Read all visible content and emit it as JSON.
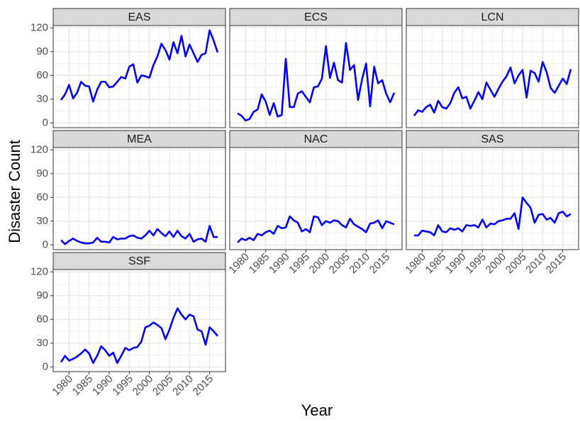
{
  "chart_data": {
    "type": "line",
    "x_label": "Year",
    "y_label": "Disaster Count",
    "x": [
      1978,
      1979,
      1980,
      1981,
      1982,
      1983,
      1984,
      1985,
      1986,
      1987,
      1988,
      1989,
      1990,
      1991,
      1992,
      1993,
      1994,
      1995,
      1996,
      1997,
      1998,
      1999,
      2000,
      2001,
      2002,
      2003,
      2004,
      2005,
      2006,
      2007,
      2008,
      2009,
      2010,
      2011,
      2012,
      2013,
      2014,
      2015,
      2016,
      2017
    ],
    "xlim": [
      1976.05,
      2018.95
    ],
    "xticks": [
      1980,
      1985,
      1990,
      1995,
      2000,
      2005,
      2010,
      2015
    ],
    "ylim": [
      -6,
      123
    ],
    "yticks": [
      0,
      30,
      60,
      90,
      120
    ],
    "grid": true,
    "series": [
      {
        "name": "EAS",
        "color": "#0000ff",
        "values": [
          29,
          36,
          48,
          31,
          38,
          52,
          47,
          46,
          27,
          42,
          52,
          52,
          45,
          46,
          52,
          58,
          56,
          71,
          74,
          51,
          60,
          59,
          57,
          73,
          84,
          100,
          92,
          80,
          102,
          88,
          110,
          84,
          99,
          88,
          77,
          86,
          88,
          117,
          104,
          89
        ]
      },
      {
        "name": "ECS",
        "color": "#0000ff",
        "values": [
          12,
          9,
          3,
          5,
          14,
          17,
          36,
          27,
          10,
          25,
          8,
          10,
          81,
          20,
          20,
          37,
          40,
          33,
          26,
          45,
          46,
          56,
          97,
          57,
          76,
          54,
          51,
          101,
          67,
          73,
          29,
          55,
          75,
          21,
          71,
          50,
          54,
          37,
          26,
          38
        ]
      },
      {
        "name": "LCN",
        "color": "#0000ff",
        "values": [
          9,
          16,
          14,
          20,
          23,
          13,
          28,
          20,
          18,
          25,
          38,
          45,
          31,
          33,
          18,
          28,
          39,
          30,
          51,
          42,
          33,
          43,
          52,
          59,
          70,
          50,
          60,
          67,
          32,
          66,
          63,
          52,
          77,
          64,
          44,
          38,
          47,
          56,
          49,
          68
        ]
      },
      {
        "name": "MEA",
        "color": "#0000ff",
        "values": [
          6,
          1,
          5,
          8,
          5,
          3,
          2,
          2,
          3,
          9,
          4,
          4,
          3,
          10,
          7,
          8,
          8,
          11,
          12,
          9,
          8,
          12,
          18,
          12,
          20,
          15,
          11,
          17,
          10,
          18,
          11,
          8,
          14,
          4,
          7,
          8,
          4,
          24,
          10,
          10
        ]
      },
      {
        "name": "NAC",
        "color": "#0000ff",
        "values": [
          3,
          8,
          6,
          9,
          6,
          14,
          12,
          16,
          18,
          14,
          24,
          21,
          22,
          36,
          31,
          28,
          17,
          20,
          16,
          36,
          35,
          25,
          30,
          28,
          31,
          30,
          25,
          22,
          33,
          26,
          23,
          20,
          16,
          27,
          28,
          31,
          21,
          30,
          28,
          26
        ]
      },
      {
        "name": "SAS",
        "color": "#0000ff",
        "values": [
          12,
          12,
          18,
          17,
          16,
          12,
          25,
          17,
          16,
          21,
          19,
          21,
          17,
          25,
          24,
          25,
          22,
          32,
          22,
          27,
          26,
          30,
          31,
          33,
          33,
          40,
          20,
          60,
          53,
          47,
          28,
          38,
          39,
          32,
          34,
          28,
          40,
          42,
          36,
          39
        ]
      },
      {
        "name": "SSF",
        "color": "#0000ff",
        "values": [
          6,
          14,
          8,
          10,
          13,
          17,
          22,
          17,
          5,
          14,
          26,
          21,
          14,
          18,
          5,
          14,
          24,
          21,
          24,
          25,
          32,
          50,
          52,
          56,
          53,
          49,
          35,
          47,
          62,
          74,
          66,
          60,
          66,
          64,
          47,
          45,
          28,
          50,
          45,
          39
        ]
      }
    ]
  }
}
